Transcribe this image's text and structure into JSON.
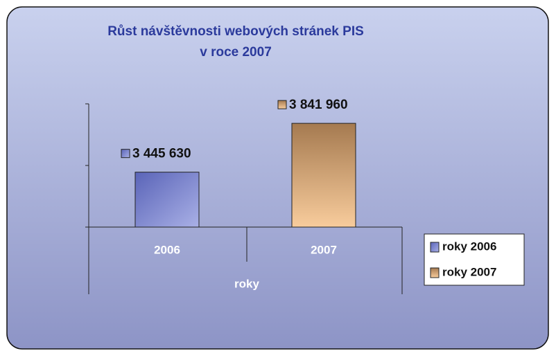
{
  "chart_data": {
    "type": "bar",
    "title": [
      "Růst návštěvnosti webových stránek PIS",
      "v roce 2007"
    ],
    "categories": [
      "2006",
      "2007"
    ],
    "x_label": "roky",
    "series": [
      {
        "name": "roky 2006",
        "color": "#5a64b8",
        "values": [
          3445630,
          null
        ],
        "value_labels": [
          "3 445 630",
          null
        ]
      },
      {
        "name": "roky 2007",
        "color": "#a57a50",
        "values": [
          null,
          3841960
        ],
        "value_labels": [
          null,
          "3 841 960"
        ]
      }
    ],
    "ylim": [
      3000000,
      4000000
    ],
    "yticks": [
      3000000,
      3500000,
      4000000
    ],
    "grid": false,
    "legend": "right"
  }
}
